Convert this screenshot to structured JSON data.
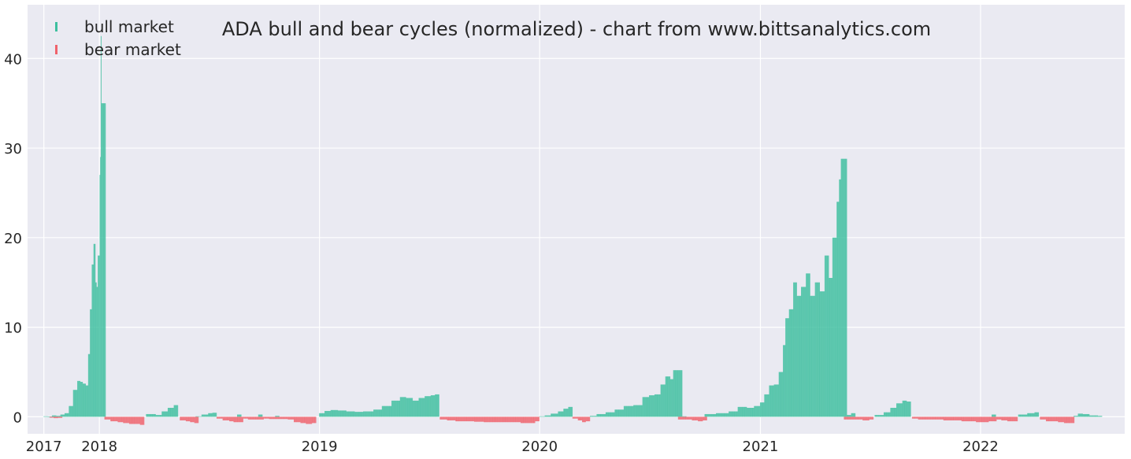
{
  "chart_data": {
    "type": "bar",
    "title": "ADA bull and bear cycles (normalized)  - chart from www.bittsanalytics.com",
    "xlabel": "",
    "ylabel": "",
    "ylim": [
      -1.9,
      46
    ],
    "y_ticks": [
      0,
      10,
      20,
      30,
      40
    ],
    "x_ticks": [
      {
        "date": "2017-10-01",
        "label": "2017"
      },
      {
        "date": "2018-01-01",
        "label": "2018"
      },
      {
        "date": "2019-01-01",
        "label": "2019"
      },
      {
        "date": "2020-01-01",
        "label": "2020"
      },
      {
        "date": "2021-01-01",
        "label": "2021"
      },
      {
        "date": "2022-01-01",
        "label": "2022"
      }
    ],
    "xlim": [
      "2017-09-04",
      "2022-08-28"
    ],
    "grid": true,
    "legend_placement": "top-left",
    "series": [
      {
        "name": "bull market",
        "color": "#3dbf9f",
        "points": [
          [
            "2017-10-01",
            0.05
          ],
          [
            "2017-10-08",
            0.02
          ],
          [
            "2017-10-15",
            0.15
          ],
          [
            "2017-10-22",
            0.1
          ],
          [
            "2017-10-29",
            0.25
          ],
          [
            "2017-11-05",
            0.4
          ],
          [
            "2017-11-12",
            1.2
          ],
          [
            "2017-11-19",
            3.0
          ],
          [
            "2017-11-26",
            4.0
          ],
          [
            "2017-12-01",
            3.9
          ],
          [
            "2017-12-05",
            3.7
          ],
          [
            "2017-12-10",
            3.5
          ],
          [
            "2017-12-14",
            7.0
          ],
          [
            "2017-12-17",
            12.0
          ],
          [
            "2017-12-20",
            17.0
          ],
          [
            "2017-12-23",
            19.3
          ],
          [
            "2017-12-26",
            15.0
          ],
          [
            "2017-12-28",
            14.5
          ],
          [
            "2017-12-30",
            18.0
          ],
          [
            "2018-01-02",
            27.0
          ],
          [
            "2018-01-03",
            29.0
          ],
          [
            "2018-01-04",
            42.5
          ],
          [
            "2018-01-05",
            35.0
          ],
          [
            "2018-03-20",
            0.3
          ],
          [
            "2018-04-05",
            0.2
          ],
          [
            "2018-04-15",
            0.6
          ],
          [
            "2018-04-25",
            1.0
          ],
          [
            "2018-05-05",
            1.3
          ],
          [
            "2018-06-10",
            0.05
          ],
          [
            "2018-06-20",
            0.25
          ],
          [
            "2018-07-01",
            0.4
          ],
          [
            "2018-07-08",
            0.45
          ],
          [
            "2018-08-18",
            0.25
          ],
          [
            "2018-09-22",
            0.25
          ],
          [
            "2018-10-20",
            0.1
          ],
          [
            "2019-01-01",
            0.4
          ],
          [
            "2019-01-10",
            0.65
          ],
          [
            "2019-01-20",
            0.75
          ],
          [
            "2019-02-01",
            0.7
          ],
          [
            "2019-02-15",
            0.6
          ],
          [
            "2019-03-01",
            0.55
          ],
          [
            "2019-03-15",
            0.6
          ],
          [
            "2019-04-01",
            0.8
          ],
          [
            "2019-04-15",
            1.2
          ],
          [
            "2019-05-01",
            1.8
          ],
          [
            "2019-05-15",
            2.2
          ],
          [
            "2019-05-25",
            2.1
          ],
          [
            "2019-06-05",
            1.8
          ],
          [
            "2019-06-15",
            2.1
          ],
          [
            "2019-06-25",
            2.3
          ],
          [
            "2019-07-05",
            2.4
          ],
          [
            "2019-07-12",
            2.5
          ],
          [
            "2020-01-01",
            0.05
          ],
          [
            "2020-01-10",
            0.15
          ],
          [
            "2020-01-20",
            0.35
          ],
          [
            "2020-02-01",
            0.6
          ],
          [
            "2020-02-10",
            0.9
          ],
          [
            "2020-02-18",
            1.1
          ],
          [
            "2020-03-25",
            0.1
          ],
          [
            "2020-04-05",
            0.3
          ],
          [
            "2020-04-20",
            0.5
          ],
          [
            "2020-05-05",
            0.8
          ],
          [
            "2020-05-20",
            1.2
          ],
          [
            "2020-06-05",
            1.3
          ],
          [
            "2020-06-20",
            2.2
          ],
          [
            "2020-07-01",
            2.4
          ],
          [
            "2020-07-10",
            2.5
          ],
          [
            "2020-07-20",
            3.6
          ],
          [
            "2020-07-28",
            4.5
          ],
          [
            "2020-08-05",
            4.2
          ],
          [
            "2020-08-10",
            5.2
          ],
          [
            "2020-08-25",
            0.05
          ],
          [
            "2020-10-01",
            0.3
          ],
          [
            "2020-10-20",
            0.4
          ],
          [
            "2020-11-10",
            0.6
          ],
          [
            "2020-11-25",
            1.1
          ],
          [
            "2020-12-10",
            1.0
          ],
          [
            "2020-12-22",
            1.2
          ],
          [
            "2021-01-01",
            1.6
          ],
          [
            "2021-01-08",
            2.5
          ],
          [
            "2021-01-16",
            3.5
          ],
          [
            "2021-01-24",
            3.6
          ],
          [
            "2021-02-01",
            5.0
          ],
          [
            "2021-02-08",
            8.0
          ],
          [
            "2021-02-12",
            11.0
          ],
          [
            "2021-02-18",
            12.0
          ],
          [
            "2021-02-25",
            15.0
          ],
          [
            "2021-03-03",
            13.5
          ],
          [
            "2021-03-10",
            14.5
          ],
          [
            "2021-03-18",
            16.0
          ],
          [
            "2021-03-25",
            13.5
          ],
          [
            "2021-04-02",
            15.0
          ],
          [
            "2021-04-10",
            14.0
          ],
          [
            "2021-04-18",
            18.0
          ],
          [
            "2021-04-25",
            15.5
          ],
          [
            "2021-05-01",
            20.0
          ],
          [
            "2021-05-08",
            24.0
          ],
          [
            "2021-05-12",
            26.5
          ],
          [
            "2021-05-15",
            28.8
          ],
          [
            "2021-05-25",
            0.2
          ],
          [
            "2021-06-01",
            0.4
          ],
          [
            "2021-07-10",
            0.2
          ],
          [
            "2021-07-25",
            0.5
          ],
          [
            "2021-08-05",
            1.0
          ],
          [
            "2021-08-15",
            1.5
          ],
          [
            "2021-08-25",
            1.8
          ],
          [
            "2021-09-01",
            1.7
          ],
          [
            "2022-01-20",
            0.25
          ],
          [
            "2022-03-05",
            0.25
          ],
          [
            "2022-03-20",
            0.4
          ],
          [
            "2022-04-01",
            0.5
          ],
          [
            "2022-06-05",
            0.1
          ],
          [
            "2022-06-12",
            0.35
          ],
          [
            "2022-06-20",
            0.3
          ],
          [
            "2022-07-01",
            0.15
          ],
          [
            "2022-07-15",
            0.1
          ]
        ]
      },
      {
        "name": "bear market",
        "color": "#f0626b",
        "points": [
          [
            "2017-10-11",
            -0.1
          ],
          [
            "2017-10-18",
            -0.15
          ],
          [
            "2017-10-25",
            -0.12
          ],
          [
            "2018-01-10",
            -0.3
          ],
          [
            "2018-01-20",
            -0.5
          ],
          [
            "2018-02-01",
            -0.6
          ],
          [
            "2018-02-10",
            -0.7
          ],
          [
            "2018-02-20",
            -0.8
          ],
          [
            "2018-03-01",
            -0.8
          ],
          [
            "2018-03-10",
            -0.9
          ],
          [
            "2018-05-15",
            -0.4
          ],
          [
            "2018-05-25",
            -0.5
          ],
          [
            "2018-06-01",
            -0.6
          ],
          [
            "2018-06-08",
            -0.7
          ],
          [
            "2018-07-15",
            -0.2
          ],
          [
            "2018-07-25",
            -0.4
          ],
          [
            "2018-08-05",
            -0.5
          ],
          [
            "2018-08-12",
            -0.6
          ],
          [
            "2018-08-28",
            -0.2
          ],
          [
            "2018-09-05",
            -0.3
          ],
          [
            "2018-09-15",
            -0.3
          ],
          [
            "2018-10-01",
            -0.2
          ],
          [
            "2018-10-10",
            -0.25
          ],
          [
            "2018-10-30",
            -0.25
          ],
          [
            "2018-11-10",
            -0.3
          ],
          [
            "2018-11-20",
            -0.6
          ],
          [
            "2018-12-01",
            -0.7
          ],
          [
            "2018-12-10",
            -0.8
          ],
          [
            "2018-12-20",
            -0.7
          ],
          [
            "2019-07-20",
            -0.3
          ],
          [
            "2019-08-01",
            -0.4
          ],
          [
            "2019-08-15",
            -0.5
          ],
          [
            "2019-09-01",
            -0.5
          ],
          [
            "2019-09-15",
            -0.55
          ],
          [
            "2019-10-01",
            -0.6
          ],
          [
            "2019-10-15",
            -0.6
          ],
          [
            "2019-11-01",
            -0.6
          ],
          [
            "2019-11-15",
            -0.6
          ],
          [
            "2019-12-01",
            -0.7
          ],
          [
            "2019-12-15",
            -0.7
          ],
          [
            "2019-12-25",
            -0.5
          ],
          [
            "2020-02-25",
            -0.2
          ],
          [
            "2020-03-05",
            -0.4
          ],
          [
            "2020-03-12",
            -0.6
          ],
          [
            "2020-03-18",
            -0.5
          ],
          [
            "2020-08-18",
            -0.3
          ],
          [
            "2020-09-01",
            -0.3
          ],
          [
            "2020-09-10",
            -0.4
          ],
          [
            "2020-09-20",
            -0.5
          ],
          [
            "2020-09-28",
            -0.4
          ],
          [
            "2021-05-20",
            -0.3
          ],
          [
            "2021-06-10",
            -0.3
          ],
          [
            "2021-06-20",
            -0.4
          ],
          [
            "2021-07-01",
            -0.3
          ],
          [
            "2021-09-10",
            -0.2
          ],
          [
            "2021-09-20",
            -0.3
          ],
          [
            "2021-10-01",
            -0.3
          ],
          [
            "2021-10-15",
            -0.3
          ],
          [
            "2021-11-01",
            -0.4
          ],
          [
            "2021-11-15",
            -0.4
          ],
          [
            "2021-12-01",
            -0.5
          ],
          [
            "2021-12-15",
            -0.5
          ],
          [
            "2021-12-25",
            -0.6
          ],
          [
            "2022-01-05",
            -0.6
          ],
          [
            "2022-01-15",
            -0.5
          ],
          [
            "2022-01-28",
            -0.3
          ],
          [
            "2022-02-05",
            -0.4
          ],
          [
            "2022-02-15",
            -0.5
          ],
          [
            "2022-02-25",
            -0.5
          ],
          [
            "2022-04-10",
            -0.3
          ],
          [
            "2022-04-20",
            -0.5
          ],
          [
            "2022-05-01",
            -0.5
          ],
          [
            "2022-05-10",
            -0.6
          ],
          [
            "2022-05-20",
            -0.7
          ],
          [
            "2022-05-30",
            -0.7
          ]
        ]
      }
    ]
  }
}
